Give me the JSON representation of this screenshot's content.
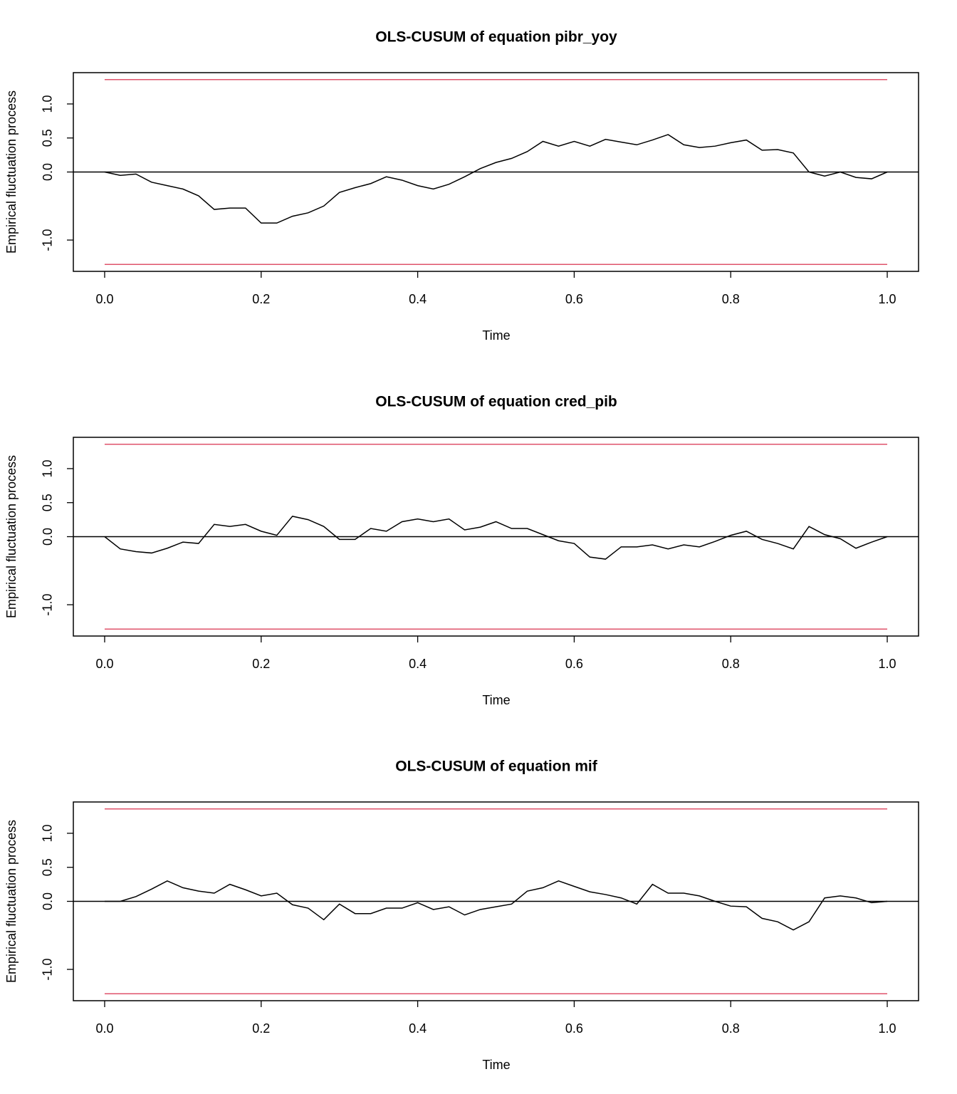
{
  "chart_data": [
    {
      "type": "line",
      "title": "OLS-CUSUM of equation pibr_yoy",
      "xlabel": "Time",
      "ylabel": "Empirical fluctuation process",
      "x": [
        0,
        0.02,
        0.04,
        0.06,
        0.08,
        0.1,
        0.12,
        0.14,
        0.16,
        0.18,
        0.2,
        0.22,
        0.24,
        0.26,
        0.28,
        0.3,
        0.32,
        0.34,
        0.36,
        0.38,
        0.4,
        0.42,
        0.44,
        0.46,
        0.48,
        0.5,
        0.52,
        0.54,
        0.56,
        0.58,
        0.6,
        0.62,
        0.64,
        0.66,
        0.68,
        0.7,
        0.72,
        0.74,
        0.76,
        0.78,
        0.8,
        0.82,
        0.84,
        0.86,
        0.88,
        0.9,
        0.92,
        0.94,
        0.96,
        0.98,
        1
      ],
      "series": [
        {
          "color": "#000000",
          "values": [
            0,
            -0.05,
            -0.03,
            -0.15,
            -0.2,
            -0.25,
            -0.35,
            -0.55,
            -0.53,
            -0.53,
            -0.75,
            -0.75,
            -0.65,
            -0.6,
            -0.5,
            -0.3,
            -0.23,
            -0.17,
            -0.07,
            -0.12,
            -0.2,
            -0.25,
            -0.18,
            -0.07,
            0.05,
            0.14,
            0.2,
            0.3,
            0.45,
            0.38,
            0.45,
            0.38,
            0.48,
            0.44,
            0.4,
            0.47,
            0.55,
            0.4,
            0.36,
            0.38,
            0.43,
            0.47,
            0.32,
            0.33,
            0.28,
            0,
            -0.06,
            0,
            -0.08,
            -0.1,
            0
          ]
        }
      ],
      "boundaries": [
        1.358,
        -1.358
      ],
      "boundary_color": "#df536b",
      "reference_line": 0,
      "xlim": [
        -0.04,
        1.04
      ],
      "ylim": [
        -1.46,
        1.46
      ],
      "xticks": [
        {
          "value": 0,
          "label": "0.0"
        },
        {
          "value": 0.2,
          "label": "0.2"
        },
        {
          "value": 0.4,
          "label": "0.4"
        },
        {
          "value": 0.6,
          "label": "0.6"
        },
        {
          "value": 0.8,
          "label": "0.8"
        },
        {
          "value": 1,
          "label": "1.0"
        }
      ],
      "yticks": [
        {
          "value": -1,
          "label": "-1.0"
        },
        {
          "value": 0,
          "label": "0.0"
        },
        {
          "value": 0.5,
          "label": "0.5"
        },
        {
          "value": 1,
          "label": "1.0"
        }
      ]
    },
    {
      "type": "line",
      "title": "OLS-CUSUM of equation cred_pib",
      "xlabel": "Time",
      "ylabel": "Empirical fluctuation process",
      "x": [
        0,
        0.02,
        0.04,
        0.06,
        0.08,
        0.1,
        0.12,
        0.14,
        0.16,
        0.18,
        0.2,
        0.22,
        0.24,
        0.26,
        0.28,
        0.3,
        0.32,
        0.34,
        0.36,
        0.38,
        0.4,
        0.42,
        0.44,
        0.46,
        0.48,
        0.5,
        0.52,
        0.54,
        0.56,
        0.58,
        0.6,
        0.62,
        0.64,
        0.66,
        0.68,
        0.7,
        0.72,
        0.74,
        0.76,
        0.78,
        0.8,
        0.82,
        0.84,
        0.86,
        0.88,
        0.9,
        0.92,
        0.94,
        0.96,
        0.98,
        1
      ],
      "series": [
        {
          "color": "#000000",
          "values": [
            0,
            -0.18,
            -0.22,
            -0.24,
            -0.17,
            -0.08,
            -0.1,
            0.18,
            0.15,
            0.18,
            0.08,
            0.02,
            0.3,
            0.25,
            0.15,
            -0.04,
            -0.04,
            0.12,
            0.08,
            0.22,
            0.26,
            0.22,
            0.26,
            0.1,
            0.14,
            0.22,
            0.12,
            0.12,
            0.03,
            -0.06,
            -0.1,
            -0.3,
            -0.33,
            -0.15,
            -0.15,
            -0.12,
            -0.18,
            -0.12,
            -0.15,
            -0.07,
            0.02,
            0.08,
            -0.04,
            -0.1,
            -0.18,
            0.15,
            0.03,
            -0.03,
            -0.17,
            -0.08,
            0
          ]
        }
      ],
      "boundaries": [
        1.358,
        -1.358
      ],
      "boundary_color": "#df536b",
      "reference_line": 0,
      "xlim": [
        -0.04,
        1.04
      ],
      "ylim": [
        -1.46,
        1.46
      ],
      "xticks": [
        {
          "value": 0,
          "label": "0.0"
        },
        {
          "value": 0.2,
          "label": "0.2"
        },
        {
          "value": 0.4,
          "label": "0.4"
        },
        {
          "value": 0.6,
          "label": "0.6"
        },
        {
          "value": 0.8,
          "label": "0.8"
        },
        {
          "value": 1,
          "label": "1.0"
        }
      ],
      "yticks": [
        {
          "value": -1,
          "label": "-1.0"
        },
        {
          "value": 0,
          "label": "0.0"
        },
        {
          "value": 0.5,
          "label": "0.5"
        },
        {
          "value": 1,
          "label": "1.0"
        }
      ]
    },
    {
      "type": "line",
      "title": "OLS-CUSUM of equation mif",
      "xlabel": "Time",
      "ylabel": "Empirical fluctuation process",
      "x": [
        0,
        0.02,
        0.04,
        0.06,
        0.08,
        0.1,
        0.12,
        0.14,
        0.16,
        0.18,
        0.2,
        0.22,
        0.24,
        0.26,
        0.28,
        0.3,
        0.32,
        0.34,
        0.36,
        0.38,
        0.4,
        0.42,
        0.44,
        0.46,
        0.48,
        0.5,
        0.52,
        0.54,
        0.56,
        0.58,
        0.6,
        0.62,
        0.64,
        0.66,
        0.68,
        0.7,
        0.72,
        0.74,
        0.76,
        0.78,
        0.8,
        0.82,
        0.84,
        0.86,
        0.88,
        0.9,
        0.92,
        0.94,
        0.96,
        0.98,
        1
      ],
      "series": [
        {
          "color": "#000000",
          "values": [
            0,
            0,
            0.07,
            0.18,
            0.3,
            0.2,
            0.15,
            0.12,
            0.25,
            0.17,
            0.08,
            0.12,
            -0.05,
            -0.1,
            -0.27,
            -0.04,
            -0.18,
            -0.18,
            -0.1,
            -0.1,
            -0.02,
            -0.12,
            -0.08,
            -0.2,
            -0.12,
            -0.08,
            -0.04,
            0.15,
            0.2,
            0.3,
            0.22,
            0.14,
            0.1,
            0.05,
            -0.04,
            0.25,
            0.12,
            0.12,
            0.08,
            0,
            -0.07,
            -0.08,
            -0.25,
            -0.3,
            -0.42,
            -0.3,
            0.05,
            0.08,
            0.05,
            -0.02,
            0
          ]
        }
      ],
      "boundaries": [
        1.358,
        -1.358
      ],
      "boundary_color": "#df536b",
      "reference_line": 0,
      "xlim": [
        -0.04,
        1.04
      ],
      "ylim": [
        -1.46,
        1.46
      ],
      "xticks": [
        {
          "value": 0,
          "label": "0.0"
        },
        {
          "value": 0.2,
          "label": "0.2"
        },
        {
          "value": 0.4,
          "label": "0.4"
        },
        {
          "value": 0.6,
          "label": "0.6"
        },
        {
          "value": 0.8,
          "label": "0.8"
        },
        {
          "value": 1,
          "label": "1.0"
        }
      ],
      "yticks": [
        {
          "value": -1,
          "label": "-1.0"
        },
        {
          "value": 0,
          "label": "0.0"
        },
        {
          "value": 0.5,
          "label": "0.5"
        },
        {
          "value": 1,
          "label": "1.0"
        }
      ]
    }
  ]
}
